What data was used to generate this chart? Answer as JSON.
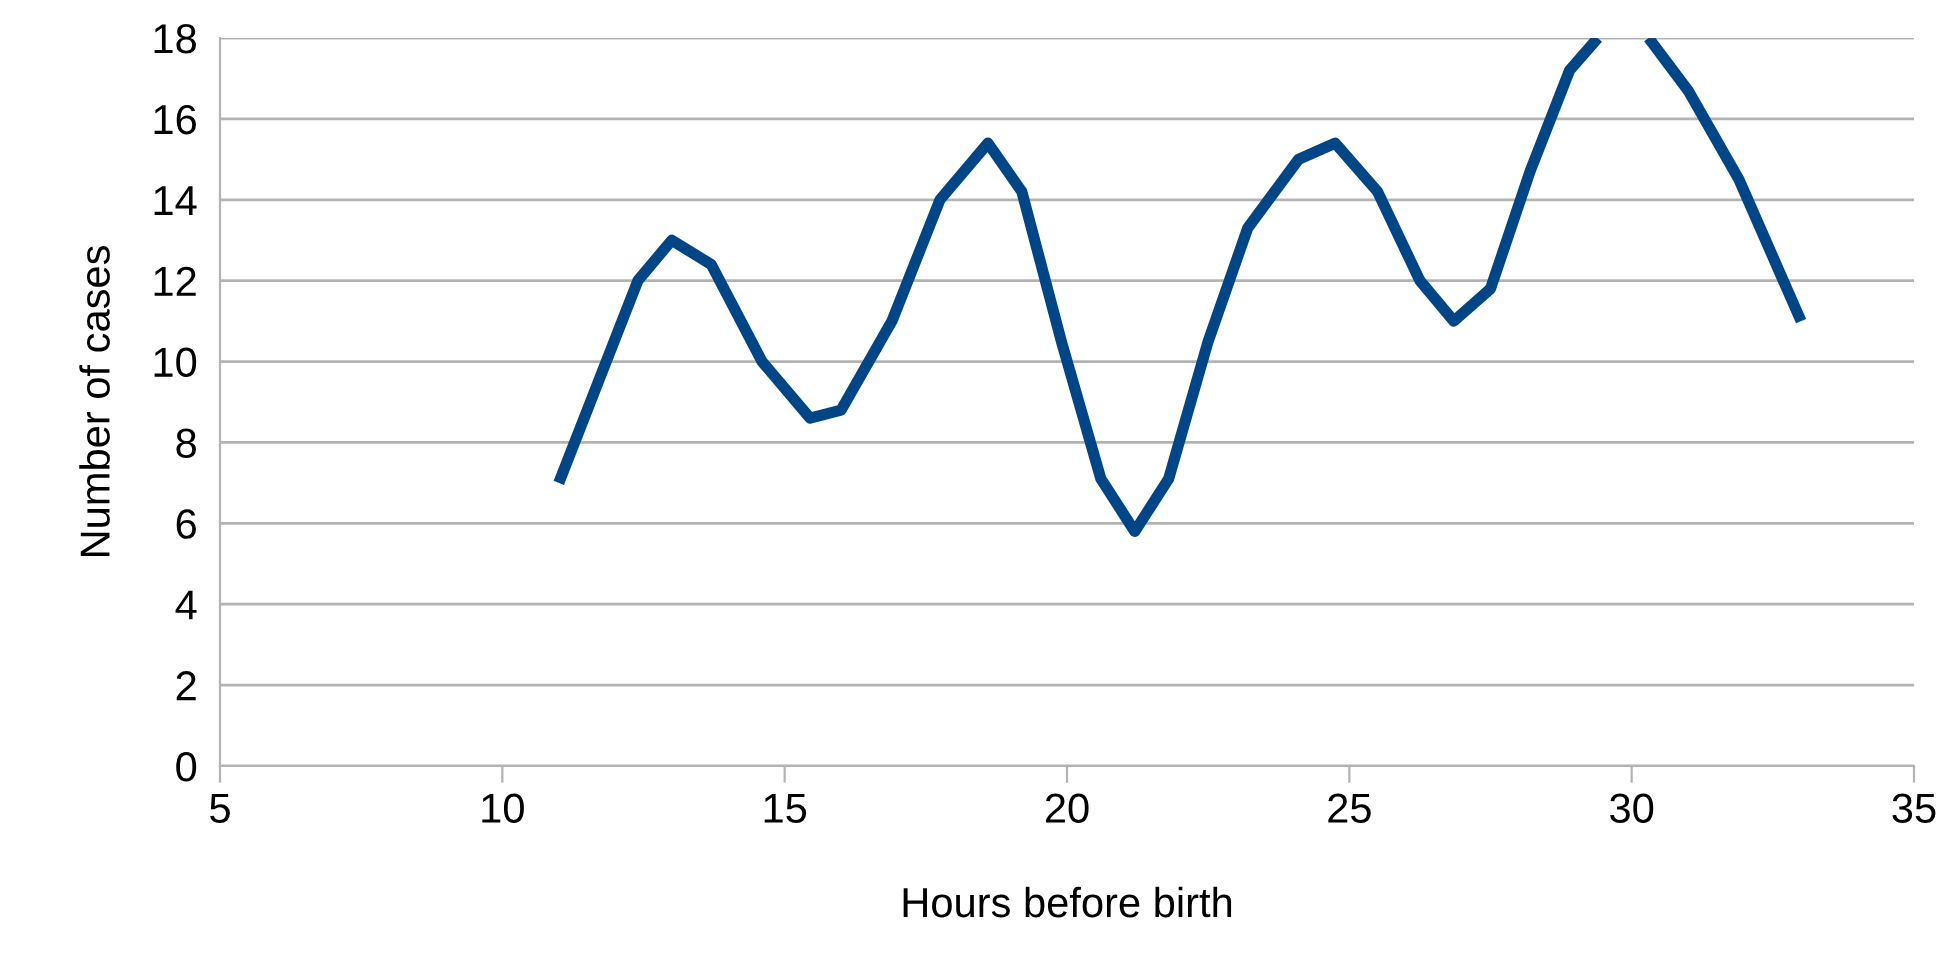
{
  "chart_data": {
    "type": "line",
    "xlabel": "Hours before birth",
    "ylabel": "Number of cases",
    "x": [
      11,
      11.7,
      12.4,
      13.0,
      13.7,
      14.6,
      15.45,
      16.0,
      16.9,
      17.75,
      18.6,
      19.2,
      19.9,
      20.6,
      21.2,
      21.8,
      22.5,
      23.2,
      24.1,
      24.75,
      25.5,
      26.25,
      26.85,
      27.5,
      28.2,
      28.9,
      29.4,
      29.9,
      30.3,
      31.0,
      31.9,
      33.0
    ],
    "series": [
      {
        "color": "#004586",
        "values": [
          7,
          9.5,
          12,
          13,
          12.4,
          10,
          8.6,
          8.8,
          11,
          14,
          15.4,
          14.2,
          10.5,
          7.1,
          5.8,
          7.1,
          10.5,
          13.3,
          15,
          15.4,
          14.2,
          12,
          11,
          11.8,
          14.7,
          17.2,
          18,
          null,
          18,
          16.7,
          14.5,
          11
        ]
      }
    ],
    "xlim": [
      5,
      35
    ],
    "ylim": [
      0,
      18
    ],
    "xticks": [
      5,
      10,
      15,
      20,
      25,
      30,
      35
    ],
    "yticks": [
      0,
      2,
      4,
      6,
      8,
      10,
      12,
      14,
      16,
      18
    ],
    "grid": "y",
    "legend": false,
    "marker": "none",
    "line_style": "solid"
  }
}
